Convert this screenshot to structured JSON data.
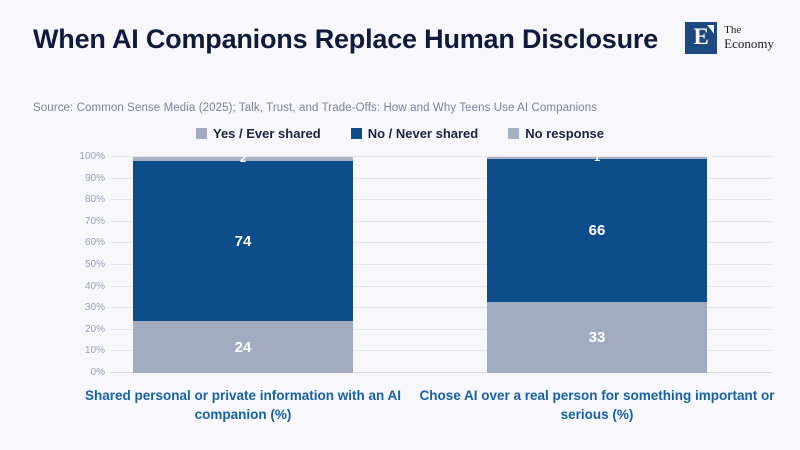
{
  "header": {
    "title": "When AI Companions Replace Human Disclosure",
    "logo": {
      "mark": "E",
      "name_line1": "The",
      "name_line2": "Economy"
    }
  },
  "source": "Source: Common Sense Media (2025); Talk, Trust, and Trade-Offs: How and Why Teens Use AI Companions",
  "colors": {
    "background": "#f7f7fc",
    "title": "#101a3c",
    "source_text": "#7b849b",
    "logo_navy": "#1c4a80",
    "x_label_blue": "#1661a9",
    "y_tick_gray": "#97a2bd",
    "gridline": "#e3e7ee"
  },
  "chart_data": {
    "type": "bar",
    "stacked": true,
    "title": "When AI Companions Replace Human Disclosure",
    "categories": [
      "Shared personal or private information with an AI companion (%)",
      "Chose AI over a real person for something important or serious (%)"
    ],
    "series": [
      {
        "name": "Yes / Ever shared",
        "color": "#a3abc0",
        "values": [
          24,
          33
        ]
      },
      {
        "name": "No / Never shared",
        "color": "#0d4d89",
        "values": [
          74,
          66
        ]
      },
      {
        "name": "No response",
        "color": "#a9b2c4",
        "values": [
          2,
          1
        ]
      }
    ],
    "ylim": [
      0,
      100
    ],
    "y_ticks": [
      "0%",
      "10%",
      "20%",
      "30%",
      "40%",
      "50%",
      "60%",
      "70%",
      "80%",
      "90%",
      "100%"
    ],
    "grid": true,
    "legend_position": "top",
    "value_labels": "white, centered in segments"
  }
}
